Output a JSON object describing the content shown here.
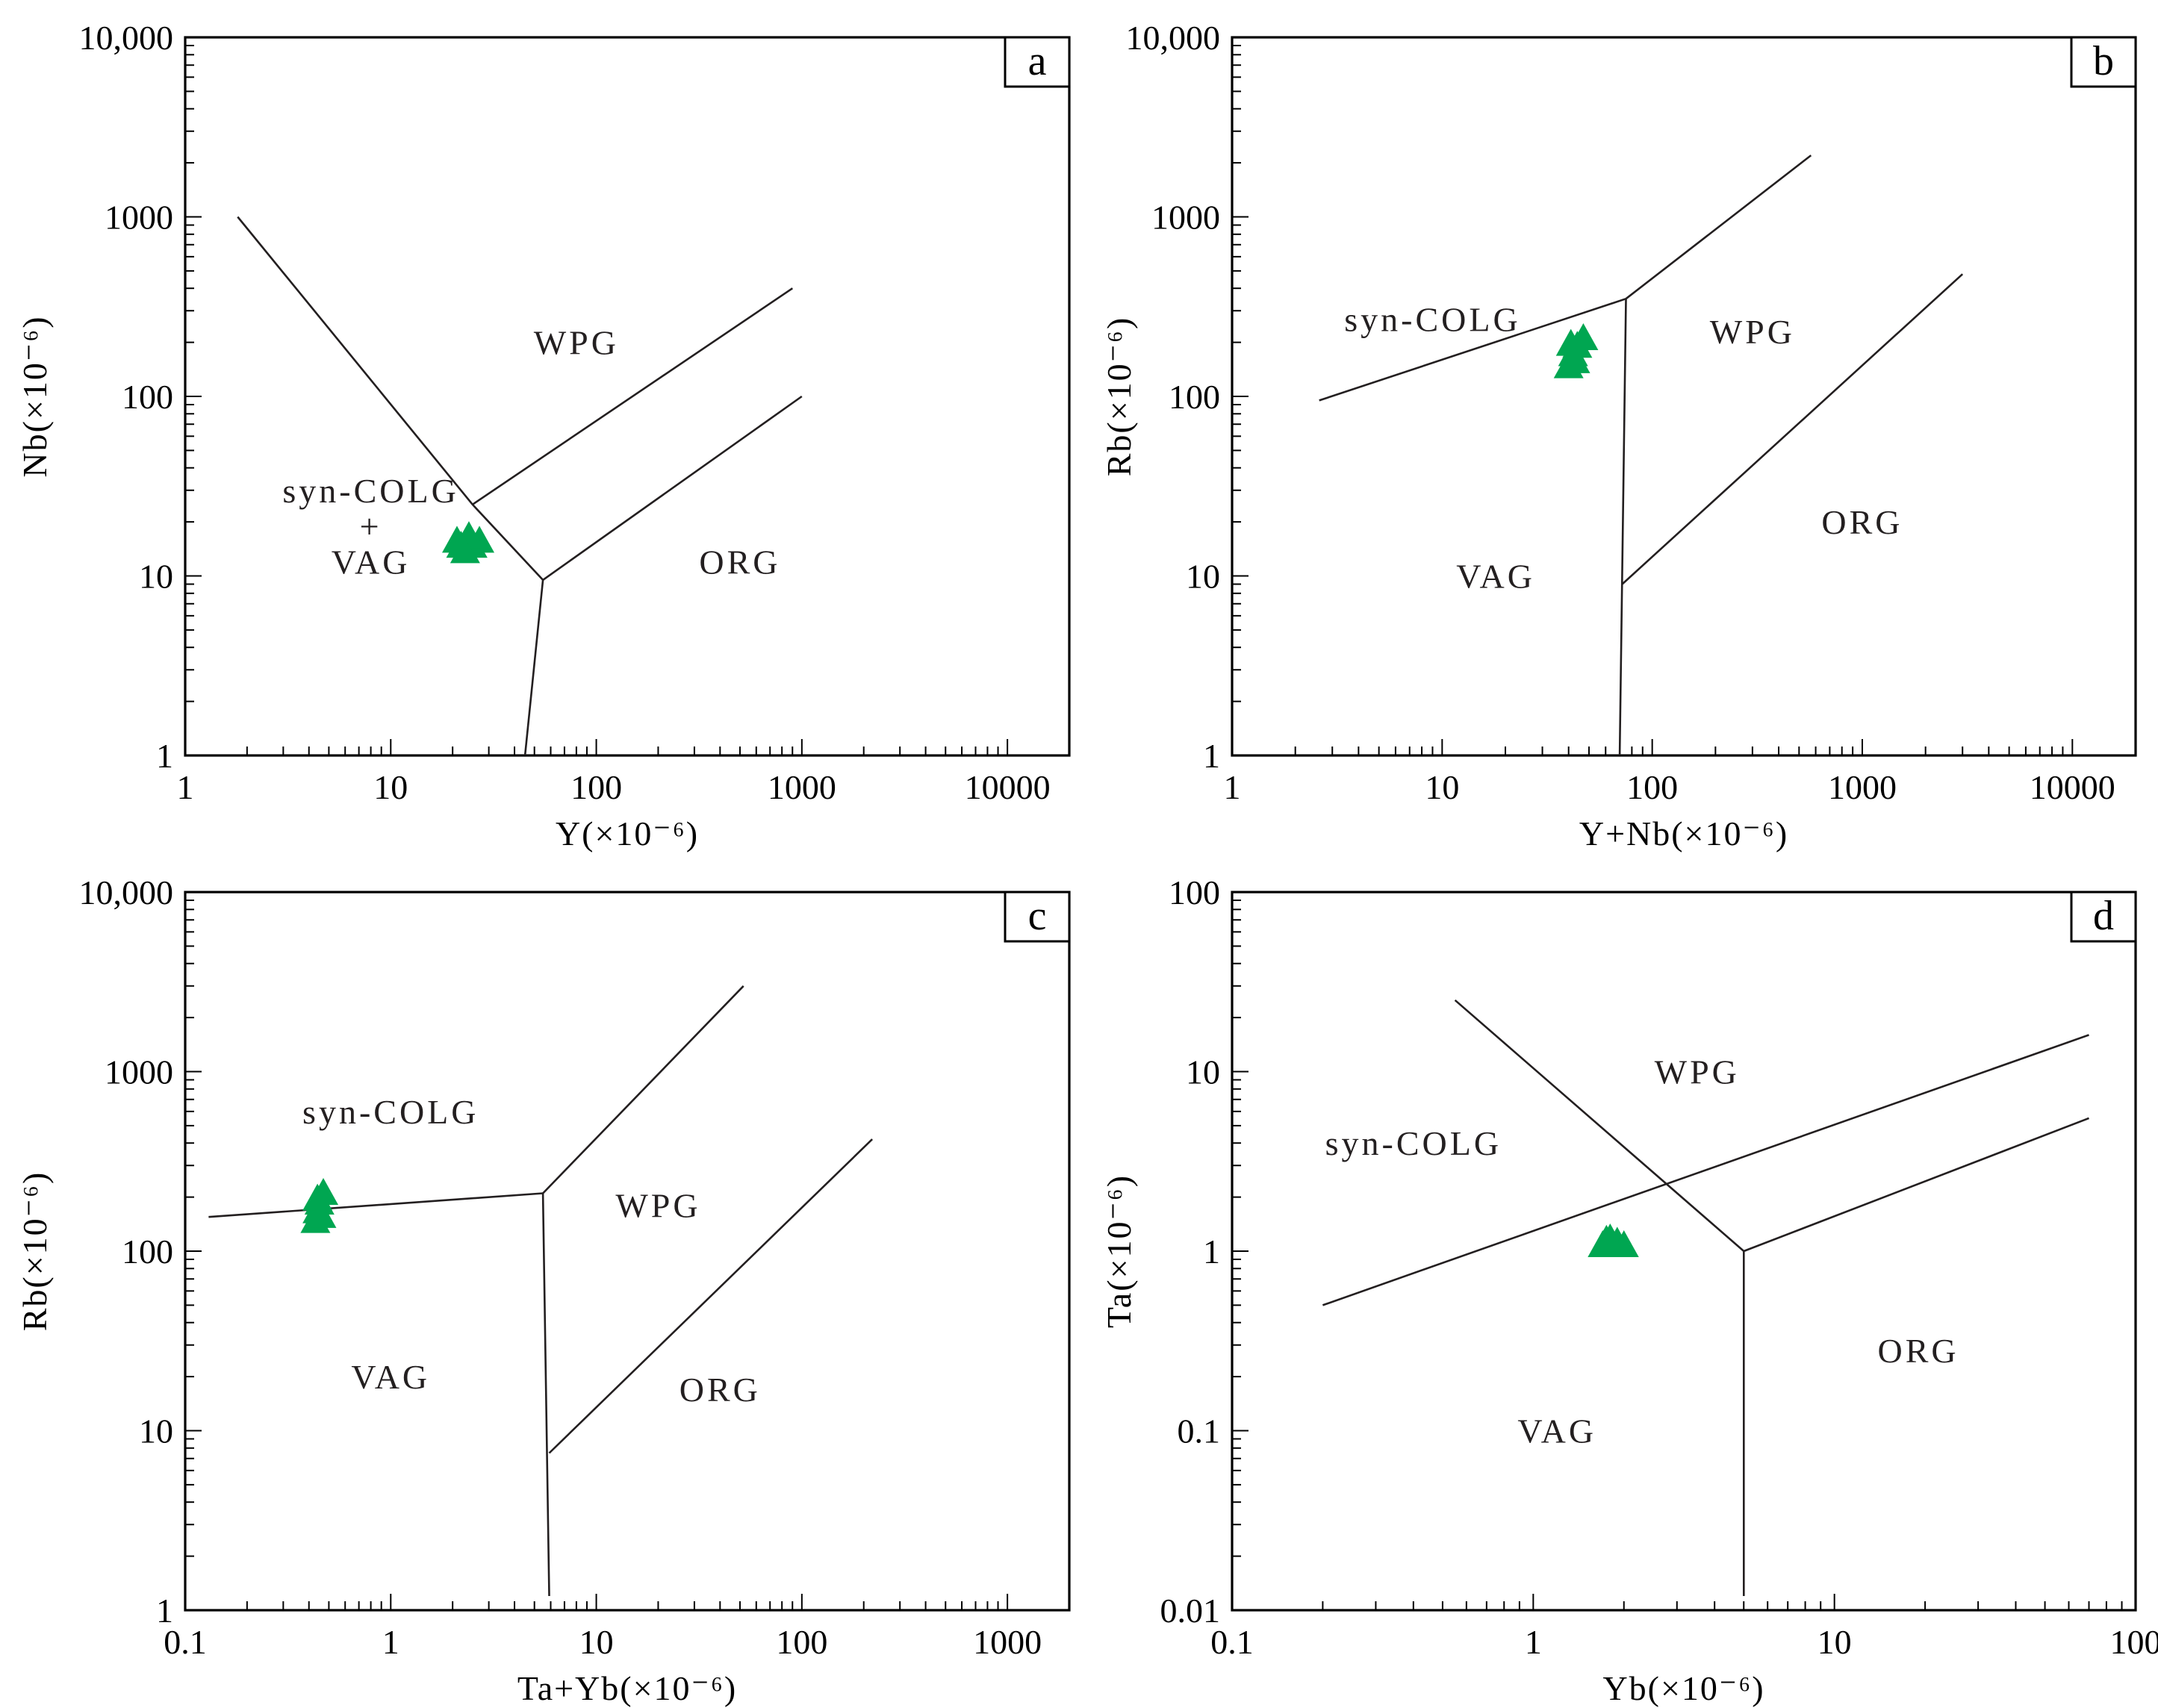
{
  "colors": {
    "sample": "#00a651",
    "line": "#231f20",
    "axis": "#000000"
  },
  "chart_data": [
    {
      "panel": "a",
      "type": "scatter",
      "xlabel": "Y(×10⁻⁶)",
      "ylabel": "Nb(×10⁻⁶)",
      "xlim": [
        1,
        20000
      ],
      "ylim": [
        1,
        10000
      ],
      "xscale": "log",
      "yscale": "log",
      "xticks": [
        {
          "v": 1,
          "label": "1"
        },
        {
          "v": 10,
          "label": "10"
        },
        {
          "v": 100,
          "label": "100"
        },
        {
          "v": 1000,
          "label": "1000"
        },
        {
          "v": 10000,
          "label": "10000"
        }
      ],
      "yticks": [
        {
          "v": 1,
          "label": "1"
        },
        {
          "v": 10,
          "label": "10"
        },
        {
          "v": 100,
          "label": "100"
        },
        {
          "v": 1000,
          "label": "1000"
        },
        {
          "v": 10000,
          "label": "10,000"
        }
      ],
      "boundaries": [
        [
          [
            1.8,
            1000
          ],
          [
            25,
            25
          ],
          [
            55,
            9.5
          ]
        ],
        [
          [
            25,
            25
          ],
          [
            900,
            400
          ]
        ],
        [
          [
            55,
            9.5
          ],
          [
            1000,
            100
          ]
        ],
        [
          [
            55,
            9.5
          ],
          [
            45,
            1
          ]
        ]
      ],
      "regions": [
        {
          "label": "WPG",
          "x": 80,
          "y": 200
        },
        {
          "label": "syn-COLG",
          "x": 8,
          "y": 30
        },
        {
          "label": "+",
          "x": 8,
          "y": 19
        },
        {
          "label": "VAG",
          "x": 8,
          "y": 12
        },
        {
          "label": "ORG",
          "x": 500,
          "y": 12
        }
      ],
      "samples": [
        {
          "x": 21,
          "y": 16
        },
        {
          "x": 23,
          "y": 14
        },
        {
          "x": 25,
          "y": 15
        },
        {
          "x": 27,
          "y": 16
        },
        {
          "x": 24,
          "y": 17
        },
        {
          "x": 22,
          "y": 15
        }
      ]
    },
    {
      "panel": "b",
      "type": "scatter",
      "xlabel": "Y+Nb(×10⁻⁶)",
      "ylabel": "Rb(×10⁻⁶)",
      "xlim": [
        1,
        20000
      ],
      "ylim": [
        1,
        10000
      ],
      "xscale": "log",
      "yscale": "log",
      "xticks": [
        {
          "v": 1,
          "label": "1"
        },
        {
          "v": 10,
          "label": "10"
        },
        {
          "v": 100,
          "label": "100"
        },
        {
          "v": 1000,
          "label": "1000"
        },
        {
          "v": 10000,
          "label": "10000"
        }
      ],
      "yticks": [
        {
          "v": 1,
          "label": "1"
        },
        {
          "v": 10,
          "label": "10"
        },
        {
          "v": 100,
          "label": "100"
        },
        {
          "v": 1000,
          "label": "1000"
        },
        {
          "v": 10000,
          "label": "10,000"
        }
      ],
      "boundaries": [
        [
          [
            2.6,
            95
          ],
          [
            75,
            350
          ]
        ],
        [
          [
            75,
            350
          ],
          [
            570,
            2200
          ]
        ],
        [
          [
            75,
            350
          ],
          [
            70,
            1
          ]
        ],
        [
          [
            72,
            9
          ],
          [
            3000,
            480
          ]
        ]
      ],
      "regions": [
        {
          "label": "syn-COLG",
          "x": 9,
          "y": 270
        },
        {
          "label": "WPG",
          "x": 300,
          "y": 230
        },
        {
          "label": "VAG",
          "x": 18,
          "y": 10
        },
        {
          "label": "ORG",
          "x": 1000,
          "y": 20
        }
      ],
      "samples": [
        {
          "x": 40,
          "y": 150
        },
        {
          "x": 42,
          "y": 175
        },
        {
          "x": 44,
          "y": 195
        },
        {
          "x": 47,
          "y": 215
        },
        {
          "x": 41,
          "y": 200
        },
        {
          "x": 43,
          "y": 160
        }
      ]
    },
    {
      "panel": "c",
      "type": "scatter",
      "xlabel": "Ta+Yb(×10⁻⁶)",
      "ylabel": "Rb(×10⁻⁶)",
      "xlim": [
        0.1,
        2000
      ],
      "ylim": [
        1,
        10000
      ],
      "xscale": "log",
      "yscale": "log",
      "xticks": [
        {
          "v": 0.1,
          "label": "0.1"
        },
        {
          "v": 1,
          "label": "1"
        },
        {
          "v": 10,
          "label": "10"
        },
        {
          "v": 100,
          "label": "100"
        },
        {
          "v": 1000,
          "label": "1000"
        }
      ],
      "yticks": [
        {
          "v": 1,
          "label": "1"
        },
        {
          "v": 10,
          "label": "10"
        },
        {
          "v": 100,
          "label": "100"
        },
        {
          "v": 1000,
          "label": "1000"
        },
        {
          "v": 10000,
          "label": "10,000"
        }
      ],
      "boundaries": [
        [
          [
            0.13,
            155
          ],
          [
            5.5,
            210
          ]
        ],
        [
          [
            5.5,
            210
          ],
          [
            52,
            3000
          ]
        ],
        [
          [
            5.5,
            210
          ],
          [
            5.9,
            1.2
          ]
        ],
        [
          [
            5.9,
            7.5
          ],
          [
            220,
            420
          ]
        ]
      ],
      "regions": [
        {
          "label": "syn-COLG",
          "x": 1,
          "y": 600
        },
        {
          "label": "WPG",
          "x": 20,
          "y": 180
        },
        {
          "label": "VAG",
          "x": 1,
          "y": 20
        },
        {
          "label": "ORG",
          "x": 40,
          "y": 17
        }
      ],
      "samples": [
        {
          "x": 0.43,
          "y": 150
        },
        {
          "x": 0.44,
          "y": 170
        },
        {
          "x": 0.45,
          "y": 190
        },
        {
          "x": 0.47,
          "y": 215
        },
        {
          "x": 0.44,
          "y": 200
        },
        {
          "x": 0.46,
          "y": 160
        }
      ]
    },
    {
      "panel": "d",
      "type": "scatter",
      "xlabel": "Yb(×10⁻⁶)",
      "ylabel": "Ta(×10⁻⁶)",
      "xlim": [
        0.1,
        100
      ],
      "ylim": [
        0.01,
        100
      ],
      "xscale": "log",
      "yscale": "log",
      "xticks": [
        {
          "v": 0.1,
          "label": "0.1"
        },
        {
          "v": 1,
          "label": "1"
        },
        {
          "v": 10,
          "label": "10"
        },
        {
          "v": 100,
          "label": "100"
        }
      ],
      "yticks": [
        {
          "v": 0.01,
          "label": "0.01"
        },
        {
          "v": 0.1,
          "label": "0.1"
        },
        {
          "v": 1,
          "label": "1"
        },
        {
          "v": 10,
          "label": "10"
        },
        {
          "v": 100,
          "label": "100"
        }
      ],
      "boundaries": [
        [
          [
            0.2,
            0.5
          ],
          [
            70,
            16
          ]
        ],
        [
          [
            0.55,
            25
          ],
          [
            5,
            1
          ]
        ],
        [
          [
            5,
            1
          ],
          [
            70,
            5.5
          ]
        ],
        [
          [
            5,
            1
          ],
          [
            5,
            0.012
          ]
        ]
      ],
      "regions": [
        {
          "label": "WPG",
          "x": 3.5,
          "y": 10
        },
        {
          "label": "syn-COLG",
          "x": 0.4,
          "y": 4
        },
        {
          "label": "VAG",
          "x": 1.2,
          "y": 0.1
        },
        {
          "label": "ORG",
          "x": 19,
          "y": 0.28
        }
      ],
      "samples": [
        {
          "x": 1.7,
          "y": 1.1
        },
        {
          "x": 1.8,
          "y": 1.2
        },
        {
          "x": 1.9,
          "y": 1.15
        },
        {
          "x": 2.0,
          "y": 1.1
        },
        {
          "x": 1.75,
          "y": 1.18
        }
      ]
    }
  ]
}
